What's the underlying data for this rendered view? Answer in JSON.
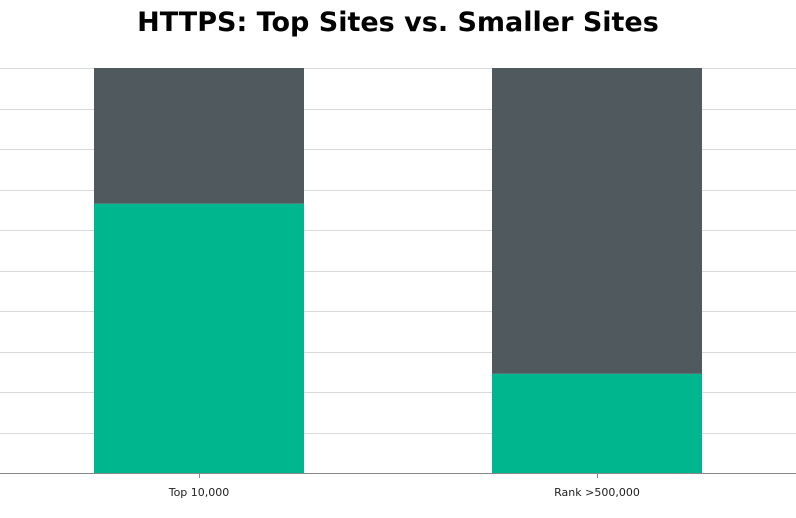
{
  "chart_data": {
    "type": "bar",
    "stacked": true,
    "title": "HTTPS: Top Sites vs. Smaller Sites",
    "xlabel": "",
    "ylabel": "",
    "categories": [
      "Top 10,000",
      "Rank >500,000"
    ],
    "series": [
      {
        "values": [
          66.5,
          24.5
        ],
        "color": "#00b68f"
      },
      {
        "values": [
          33.5,
          75.5
        ],
        "color": "#4f595e"
      }
    ],
    "ylim": [
      0,
      100
    ],
    "grid": true,
    "legend": "none"
  }
}
